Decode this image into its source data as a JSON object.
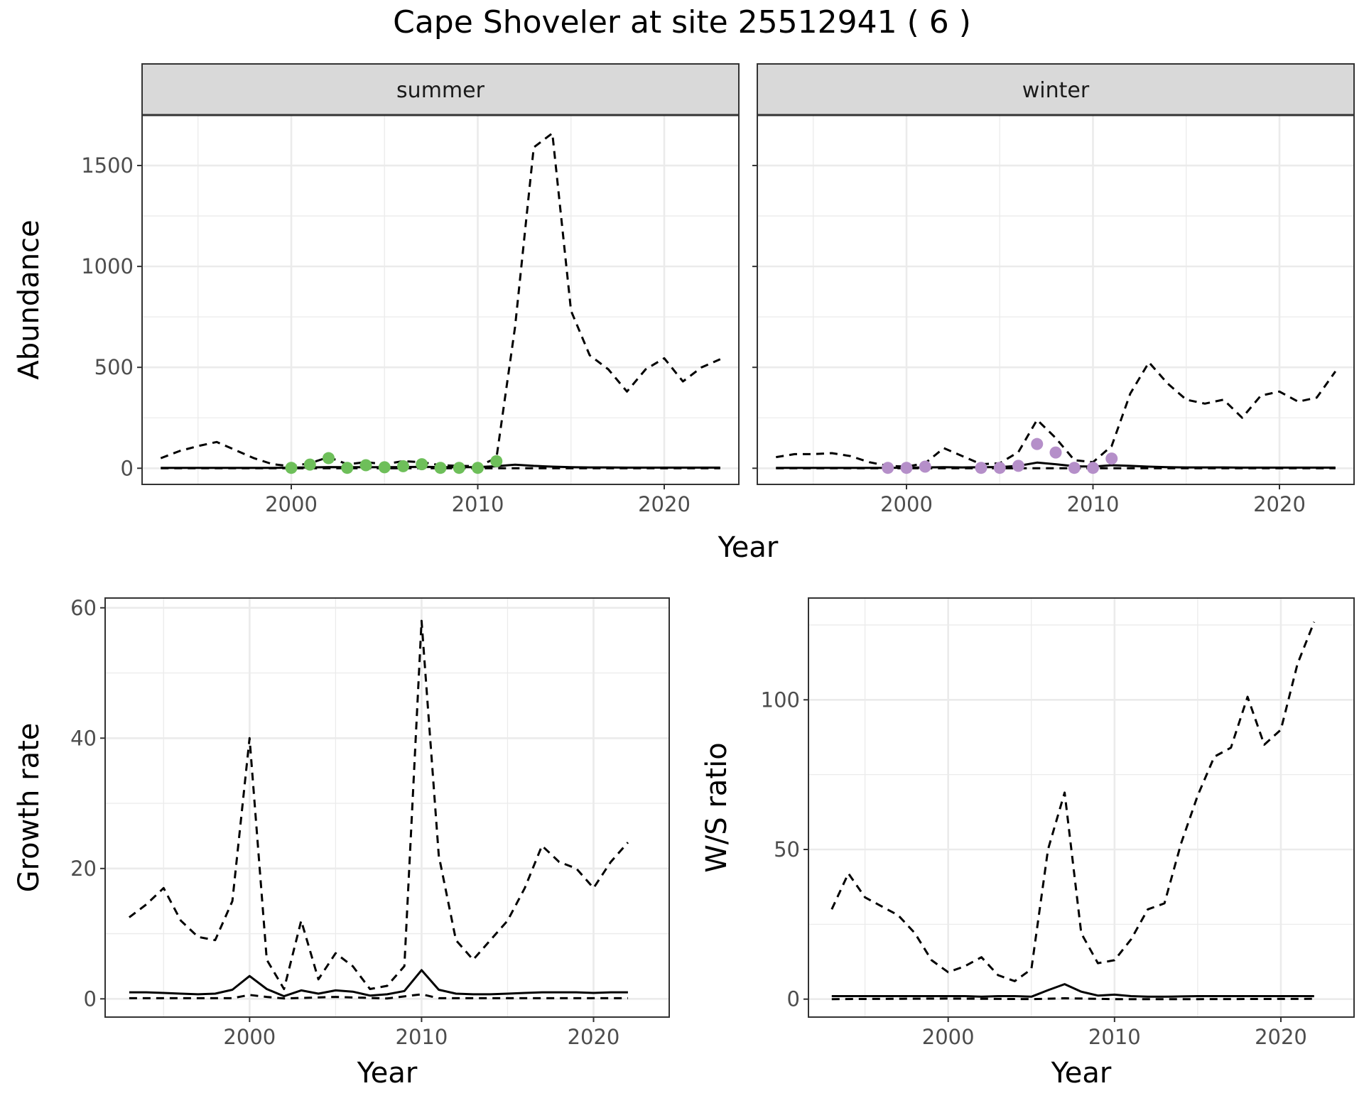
{
  "title": "Cape Shoveler at site 25512941 ( 6 )",
  "colors": {
    "summer_points": "#6ebf5a",
    "winter_points": "#b58fc9",
    "line": "#000000",
    "strip_bg": "#d9d9d9",
    "grid": "#ebebeb"
  },
  "chart_data": [
    {
      "id": "summer",
      "type": "line",
      "strip": "summer",
      "xlabel": "Year",
      "ylabel": "Abundance",
      "xlim": [
        1992,
        2024
      ],
      "ylim": [
        -80,
        1750
      ],
      "x_ticks": [
        2000,
        2010,
        2020
      ],
      "x_tick_labels": [
        "2000",
        "2010",
        "2020"
      ],
      "y_ticks": [
        0,
        500,
        1000,
        1500
      ],
      "y_tick_labels": [
        "0",
        "500",
        "1000",
        "1500"
      ],
      "grid": true,
      "series": [
        {
          "style": "solid",
          "x": [
            1993,
            1994,
            1995,
            1996,
            1997,
            1998,
            1999,
            2000,
            2001,
            2002,
            2003,
            2004,
            2005,
            2006,
            2007,
            2008,
            2009,
            2010,
            2011,
            2012,
            2013,
            2014,
            2015,
            2016,
            2017,
            2018,
            2019,
            2020,
            2021,
            2022,
            2023
          ],
          "values": [
            2,
            2,
            2,
            2,
            2,
            2,
            2,
            3,
            4,
            6,
            5,
            5,
            5,
            6,
            7,
            6,
            5,
            6,
            10,
            18,
            12,
            8,
            5,
            4,
            4,
            3,
            3,
            3,
            3,
            3,
            3
          ]
        },
        {
          "style": "dashed",
          "x": [
            1993,
            1994,
            1995,
            1996,
            1997,
            1998,
            1999,
            2000,
            2001,
            2002,
            2003,
            2004,
            2005,
            2006,
            2007,
            2008,
            2009,
            2010,
            2011,
            2012,
            2013,
            2014,
            2015,
            2016,
            2017,
            2018,
            2019,
            2020,
            2021,
            2022,
            2023
          ],
          "values": [
            50,
            85,
            110,
            130,
            90,
            50,
            20,
            10,
            25,
            55,
            20,
            30,
            20,
            35,
            30,
            15,
            12,
            10,
            50,
            700,
            1590,
            1660,
            780,
            560,
            490,
            380,
            490,
            545,
            430,
            500,
            540
          ]
        },
        {
          "style": "dashed",
          "x": [
            1993,
            2000,
            2010,
            2011,
            2015,
            2023
          ],
          "values": [
            0,
            0,
            0,
            0,
            0,
            0
          ]
        }
      ],
      "points": {
        "x": [
          2000,
          2001,
          2002,
          2003,
          2004,
          2005,
          2006,
          2007,
          2008,
          2009,
          2010,
          2011
        ],
        "values": [
          2,
          18,
          50,
          2,
          15,
          5,
          10,
          20,
          2,
          2,
          2,
          35
        ]
      }
    },
    {
      "id": "winter",
      "type": "line",
      "strip": "winter",
      "xlabel": "Year",
      "ylabel": "",
      "xlim": [
        1992,
        2024
      ],
      "ylim": [
        -80,
        1750
      ],
      "x_ticks": [
        2000,
        2010,
        2020
      ],
      "x_tick_labels": [
        "2000",
        "2010",
        "2020"
      ],
      "y_ticks": [
        0,
        500,
        1000,
        1500
      ],
      "grid": true,
      "series": [
        {
          "style": "solid",
          "x": [
            1993,
            1994,
            1995,
            1996,
            1997,
            1998,
            1999,
            2000,
            2001,
            2002,
            2003,
            2004,
            2005,
            2006,
            2007,
            2008,
            2009,
            2010,
            2011,
            2012,
            2013,
            2014,
            2015,
            2016,
            2017,
            2018,
            2019,
            2020,
            2021,
            2022,
            2023
          ],
          "values": [
            2,
            2,
            2,
            2,
            2,
            2,
            2,
            3,
            4,
            5,
            4,
            5,
            6,
            12,
            28,
            20,
            10,
            8,
            15,
            12,
            8,
            5,
            4,
            4,
            4,
            3,
            3,
            3,
            3,
            3,
            3
          ]
        },
        {
          "style": "dashed",
          "x": [
            1993,
            1994,
            1995,
            1996,
            1997,
            1998,
            1999,
            2000,
            2001,
            2002,
            2003,
            2004,
            2005,
            2006,
            2007,
            2008,
            2009,
            2010,
            2011,
            2012,
            2013,
            2014,
            2015,
            2016,
            2017,
            2018,
            2019,
            2020,
            2021,
            2022,
            2023
          ],
          "values": [
            55,
            70,
            70,
            75,
            60,
            30,
            12,
            8,
            25,
            100,
            60,
            20,
            25,
            80,
            240,
            150,
            40,
            30,
            110,
            370,
            525,
            420,
            340,
            320,
            340,
            250,
            360,
            380,
            330,
            350,
            480
          ]
        },
        {
          "style": "dashed",
          "x": [
            1993,
            2000,
            2010,
            2015,
            2023
          ],
          "values": [
            0,
            0,
            0,
            0,
            0
          ]
        }
      ],
      "points": {
        "x": [
          1999,
          2000,
          2001,
          2004,
          2005,
          2006,
          2007,
          2008,
          2009,
          2010,
          2011
        ],
        "values": [
          2,
          2,
          8,
          2,
          2,
          12,
          120,
          78,
          2,
          2,
          48
        ]
      }
    },
    {
      "id": "growth",
      "type": "line",
      "xlabel": "Year",
      "ylabel": "Growth rate",
      "xlim": [
        1991.6,
        2024.4
      ],
      "ylim": [
        -2.8,
        61.5
      ],
      "x_ticks": [
        2000,
        2010,
        2020
      ],
      "x_tick_labels": [
        "2000",
        "2010",
        "2020"
      ],
      "y_ticks": [
        0,
        20,
        40,
        60
      ],
      "y_tick_labels": [
        "0",
        "20",
        "40",
        "60"
      ],
      "grid": true,
      "series": [
        {
          "style": "solid",
          "x": [
            1993,
            1994,
            1995,
            1996,
            1997,
            1998,
            1999,
            2000,
            2001,
            2002,
            2003,
            2004,
            2005,
            2006,
            2007,
            2008,
            2009,
            2010,
            2011,
            2012,
            2013,
            2014,
            2015,
            2016,
            2017,
            2018,
            2019,
            2020,
            2021,
            2022
          ],
          "values": [
            1,
            1,
            0.9,
            0.8,
            0.7,
            0.8,
            1.4,
            3.5,
            1.5,
            0.4,
            1.3,
            0.8,
            1.3,
            1.1,
            0.5,
            0.7,
            1.2,
            4.4,
            1.4,
            0.8,
            0.7,
            0.7,
            0.8,
            0.9,
            1,
            1,
            1,
            0.9,
            1,
            1
          ]
        },
        {
          "style": "dashed",
          "x": [
            1993,
            1994,
            1995,
            1996,
            1997,
            1998,
            1999,
            2000,
            2001,
            2002,
            2003,
            2004,
            2005,
            2006,
            2007,
            2008,
            2009,
            2010,
            2011,
            2012,
            2013,
            2014,
            2015,
            2016,
            2017,
            2018,
            2019,
            2020,
            2021,
            2022
          ],
          "values": [
            12.5,
            14.5,
            17,
            12,
            9.5,
            9,
            15,
            40,
            6,
            1.5,
            12,
            3,
            7,
            5,
            1.5,
            2,
            5,
            58,
            22,
            9,
            6,
            9,
            12,
            17,
            23.5,
            21,
            20,
            17,
            21,
            24
          ]
        },
        {
          "style": "dashed",
          "x": [
            1993,
            1999,
            2000,
            2001,
            2002,
            2005,
            2008,
            2010,
            2011,
            2015,
            2022
          ],
          "values": [
            0.1,
            0.1,
            0.6,
            0.3,
            0.05,
            0.3,
            0.05,
            0.7,
            0.1,
            0.1,
            0.1
          ]
        }
      ]
    },
    {
      "id": "ws_ratio",
      "type": "line",
      "xlabel": "Year",
      "ylabel": "W/S ratio",
      "xlim": [
        1991.6,
        2024.4
      ],
      "ylim": [
        -6,
        134
      ],
      "x_ticks": [
        2000,
        2010,
        2020
      ],
      "x_tick_labels": [
        "2000",
        "2010",
        "2020"
      ],
      "y_ticks": [
        0,
        50,
        100
      ],
      "y_tick_labels": [
        "0",
        "50",
        "100"
      ],
      "grid": true,
      "series": [
        {
          "style": "solid",
          "x": [
            1993,
            1994,
            1995,
            1996,
            1997,
            1998,
            1999,
            2000,
            2001,
            2002,
            2003,
            2004,
            2005,
            2006,
            2007,
            2008,
            2009,
            2010,
            2011,
            2012,
            2013,
            2014,
            2015,
            2016,
            2017,
            2018,
            2019,
            2020,
            2021,
            2022
          ],
          "values": [
            1,
            1,
            1,
            1,
            1,
            1,
            1,
            1,
            1,
            0.8,
            1,
            1,
            0.8,
            3,
            5,
            2.5,
            1.2,
            1.5,
            1,
            0.8,
            0.8,
            0.9,
            1,
            1,
            1,
            1,
            1,
            1,
            1,
            1
          ]
        },
        {
          "style": "dashed",
          "x": [
            1993,
            1994,
            1995,
            1996,
            1997,
            1998,
            1999,
            2000,
            2001,
            2002,
            2003,
            2004,
            2005,
            2006,
            2007,
            2008,
            2009,
            2010,
            2011,
            2012,
            2013,
            2014,
            2015,
            2016,
            2017,
            2018,
            2019,
            2020,
            2021,
            2022
          ],
          "values": [
            30,
            42,
            34,
            31,
            28,
            22,
            13,
            9,
            11,
            14,
            8,
            6,
            10,
            50,
            69,
            22,
            12,
            13,
            20,
            30,
            32,
            52,
            68,
            81,
            84,
            101,
            85,
            90,
            112,
            126
          ]
        },
        {
          "style": "dashed",
          "x": [
            1993,
            2000,
            2005,
            2007,
            2010,
            2015,
            2022
          ],
          "values": [
            0,
            0.2,
            0,
            0.3,
            0,
            0,
            0.1
          ]
        }
      ]
    }
  ]
}
